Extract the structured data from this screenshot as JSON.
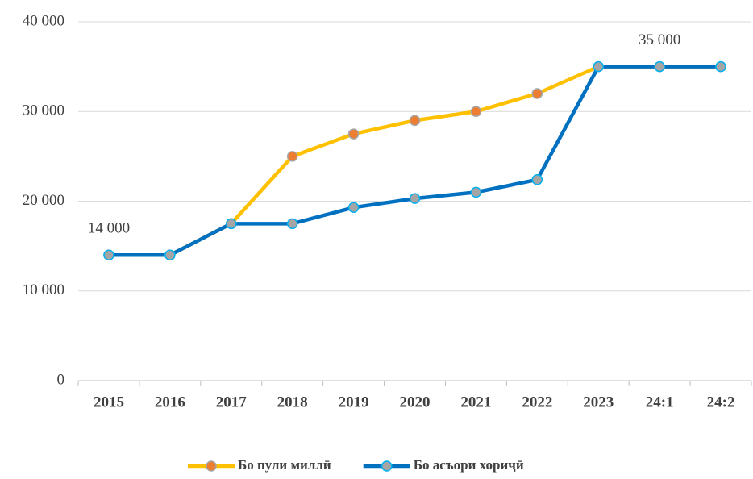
{
  "chart_data": {
    "type": "line",
    "categories": [
      "2015",
      "2016",
      "2017",
      "2018",
      "2019",
      "2020",
      "2021",
      "2022",
      "2023",
      "24:1",
      "24:2"
    ],
    "series": [
      {
        "name": "Бо пули миллӣ",
        "color": "#FFC000",
        "marker_color": "#ED7D31",
        "values": [
          14000,
          14000,
          17500,
          25000,
          27500,
          29000,
          30000,
          32000,
          35000,
          35000,
          35000
        ]
      },
      {
        "name": "Бо асъори хориҷӣ",
        "color": "#0070C0",
        "marker_color": "#A5A5A5",
        "values": [
          14000,
          14000,
          17500,
          17500,
          19300,
          20300,
          21000,
          22400,
          35000,
          35000,
          35000
        ],
        "value_labels": [
          "14 000",
          null,
          null,
          null,
          null,
          null,
          null,
          null,
          null,
          "35 000",
          null
        ]
      }
    ],
    "ylim": [
      0,
      40000
    ],
    "yticks": [
      0,
      {
        "value": 10000,
        "label": "10 000"
      },
      {
        "value": 20000,
        "label": "20 000"
      },
      {
        "value": 30000,
        "label": "30 000"
      },
      {
        "value": 40000,
        "label": "40 000"
      }
    ],
    "grid": true,
    "legend": "bottom"
  }
}
